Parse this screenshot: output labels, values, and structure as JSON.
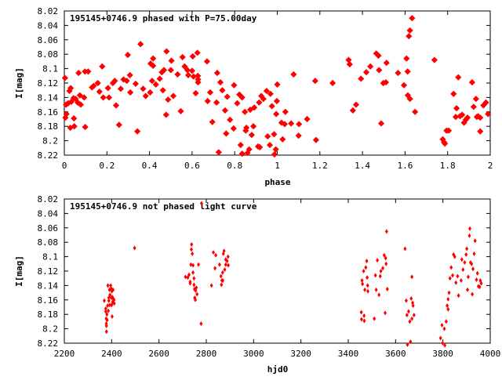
{
  "chart_data": [
    {
      "type": "scatter",
      "title": "195145+0746.9 phased with P=75.00day",
      "xlabel": "phase",
      "ylabel": "I[mag]",
      "xlim": [
        0,
        2
      ],
      "ylim": [
        8.22,
        8.02
      ],
      "y_inverted": true,
      "grid": false,
      "marker_color": "#ff0000",
      "x_ticks": [
        "0",
        "0.2",
        "0.4",
        "0.6",
        "0.8",
        "1",
        "1.2",
        "1.4",
        "1.6",
        "1.8",
        "2"
      ],
      "y_ticks": [
        "8.02",
        "8.04",
        "8.06",
        "8.08",
        "8.1",
        "8.12",
        "8.14",
        "8.16",
        "8.18",
        "8.2",
        "8.22"
      ],
      "points": [
        [
          0.003,
          8.113
        ],
        [
          0.005,
          8.168
        ],
        [
          0.008,
          8.15
        ],
        [
          0.01,
          8.163
        ],
        [
          0.018,
          8.148
        ],
        [
          0.024,
          8.131
        ],
        [
          0.028,
          8.182
        ],
        [
          0.03,
          8.127
        ],
        [
          0.033,
          8.146
        ],
        [
          0.043,
          8.141
        ],
        [
          0.045,
          8.169
        ],
        [
          0.047,
          8.18
        ],
        [
          0.053,
          8.142
        ],
        [
          0.063,
          8.147
        ],
        [
          0.067,
          8.106
        ],
        [
          0.073,
          8.137
        ],
        [
          0.077,
          8.15
        ],
        [
          0.093,
          8.14
        ],
        [
          0.097,
          8.104
        ],
        [
          0.098,
          8.181
        ],
        [
          0.112,
          8.104
        ],
        [
          0.13,
          8.126
        ],
        [
          0.138,
          8.124
        ],
        [
          0.157,
          8.12
        ],
        [
          0.165,
          8.132
        ],
        [
          0.178,
          8.097
        ],
        [
          0.183,
          8.14
        ],
        [
          0.205,
          8.127
        ],
        [
          0.21,
          8.14
        ],
        [
          0.228,
          8.12
        ],
        [
          0.237,
          8.117
        ],
        [
          0.243,
          8.151
        ],
        [
          0.257,
          8.178
        ],
        [
          0.265,
          8.128
        ],
        [
          0.278,
          8.115
        ],
        [
          0.293,
          8.117
        ],
        [
          0.298,
          8.081
        ],
        [
          0.308,
          8.109
        ],
        [
          0.31,
          8.133
        ],
        [
          0.335,
          8.121
        ],
        [
          0.343,
          8.187
        ],
        [
          0.358,
          8.066
        ],
        [
          0.37,
          8.128
        ],
        [
          0.382,
          8.138
        ],
        [
          0.403,
          8.133
        ],
        [
          0.405,
          8.093
        ],
        [
          0.412,
          8.117
        ],
        [
          0.417,
          8.086
        ],
        [
          0.417,
          8.096
        ],
        [
          0.43,
          8.122
        ],
        [
          0.448,
          8.114
        ],
        [
          0.458,
          8.105
        ],
        [
          0.463,
          8.13
        ],
        [
          0.468,
          8.102
        ],
        [
          0.478,
          8.164
        ],
        [
          0.48,
          8.076
        ],
        [
          0.487,
          8.143
        ],
        [
          0.5,
          8.102
        ],
        [
          0.503,
          8.089
        ],
        [
          0.512,
          8.138
        ],
        [
          0.532,
          8.108
        ],
        [
          0.547,
          8.159
        ],
        [
          0.555,
          8.084
        ],
        [
          0.565,
          8.097
        ],
        [
          0.578,
          8.102
        ],
        [
          0.582,
          8.109
        ],
        [
          0.6,
          8.103
        ],
        [
          0.603,
          8.083
        ],
        [
          0.607,
          8.111
        ],
        [
          0.617,
          8.134
        ],
        [
          0.625,
          8.078
        ],
        [
          0.627,
          8.11
        ],
        [
          0.628,
          8.119
        ],
        [
          0.628,
          8.115
        ],
        [
          0.67,
          8.09
        ],
        [
          0.673,
          8.145
        ],
        [
          0.685,
          8.133
        ],
        [
          0.695,
          8.174
        ],
        [
          0.715,
          8.147
        ],
        [
          0.718,
          8.106
        ],
        [
          0.725,
          8.216
        ],
        [
          0.733,
          8.119
        ],
        [
          0.742,
          8.13
        ],
        [
          0.755,
          8.158
        ],
        [
          0.76,
          8.19
        ],
        [
          0.765,
          8.139
        ],
        [
          0.778,
          8.171
        ],
        [
          0.795,
          8.183
        ],
        [
          0.797,
          8.123
        ],
        [
          0.812,
          8.148
        ],
        [
          0.822,
          8.136
        ],
        [
          0.828,
          8.206
        ],
        [
          0.835,
          8.14
        ],
        [
          0.835,
          8.218
        ],
        [
          0.848,
          8.16
        ],
        [
          0.852,
          8.186
        ],
        [
          0.855,
          8.182
        ],
        [
          0.86,
          8.217
        ],
        [
          0.868,
          8.212
        ],
        [
          0.873,
          8.157
        ],
        [
          0.88,
          8.192
        ],
        [
          0.888,
          8.18
        ],
        [
          0.892,
          8.154
        ],
        [
          0.91,
          8.208
        ],
        [
          0.915,
          8.147
        ],
        [
          0.918,
          8.209
        ],
        [
          0.925,
          8.138
        ],
        [
          0.935,
          8.142
        ],
        [
          0.95,
          8.131
        ],
        [
          0.955,
          8.194
        ],
        [
          0.965,
          8.206
        ],
        [
          0.968,
          8.135
        ],
        [
          0.975,
          8.152
        ],
        [
          0.985,
          8.191
        ],
        [
          0.987,
          8.219
        ],
        [
          0.993,
          8.212
        ],
        [
          0.995,
          8.163
        ],
        [
          0.998,
          8.145
        ],
        [
          1.0,
          8.122
        ],
        [
          1.02,
          8.175
        ],
        [
          1.025,
          8.198
        ],
        [
          1.035,
          8.177
        ],
        [
          1.038,
          8.16
        ],
        [
          1.065,
          8.176
        ],
        [
          1.077,
          8.108
        ],
        [
          1.1,
          8.193
        ],
        [
          1.102,
          8.177
        ],
        [
          1.14,
          8.17
        ],
        [
          1.178,
          8.117
        ],
        [
          1.182,
          8.199
        ],
        [
          1.26,
          8.12
        ],
        [
          1.335,
          8.088
        ],
        [
          1.34,
          8.094
        ],
        [
          1.355,
          8.158
        ],
        [
          1.37,
          8.15
        ],
        [
          1.393,
          8.114
        ],
        [
          1.418,
          8.105
        ],
        [
          1.437,
          8.097
        ],
        [
          1.465,
          8.079
        ],
        [
          1.475,
          8.082
        ],
        [
          1.478,
          8.102
        ],
        [
          1.488,
          8.176
        ],
        [
          1.498,
          8.12
        ],
        [
          1.51,
          8.119
        ],
        [
          1.513,
          8.092
        ],
        [
          1.567,
          8.106
        ],
        [
          1.595,
          8.123
        ],
        [
          1.607,
          8.086
        ],
        [
          1.612,
          8.104
        ],
        [
          1.613,
          8.137
        ],
        [
          1.618,
          8.055
        ],
        [
          1.623,
          8.047
        ],
        [
          1.623,
          8.142
        ],
        [
          1.633,
          8.03
        ],
        [
          1.647,
          8.16
        ],
        [
          1.738,
          8.088
        ],
        [
          1.777,
          8.198
        ],
        [
          1.783,
          8.202
        ],
        [
          1.787,
          8.204
        ],
        [
          1.795,
          8.186
        ],
        [
          1.805,
          8.186
        ],
        [
          1.828,
          8.135
        ],
        [
          1.838,
          8.167
        ],
        [
          1.842,
          8.155
        ],
        [
          1.85,
          8.112
        ],
        [
          1.858,
          8.166
        ],
        [
          1.868,
          8.164
        ],
        [
          1.877,
          8.175
        ],
        [
          1.885,
          8.171
        ],
        [
          1.893,
          8.168
        ],
        [
          1.915,
          8.119
        ],
        [
          1.922,
          8.153
        ],
        [
          1.933,
          8.142
        ],
        [
          1.937,
          8.167
        ],
        [
          1.943,
          8.166
        ],
        [
          1.953,
          8.168
        ],
        [
          1.953,
          8.187
        ],
        [
          1.968,
          8.151
        ],
        [
          1.98,
          8.147
        ],
        [
          1.99,
          8.163
        ]
      ]
    },
    {
      "type": "scatter",
      "title": "195145+0746.9 not phased light curve",
      "xlabel": "hjd0",
      "ylabel": "I[mag]",
      "xlim": [
        2200,
        4000
      ],
      "ylim": [
        8.22,
        8.02
      ],
      "y_inverted": true,
      "grid": false,
      "marker_color": "#ff0000",
      "x_ticks": [
        "2200",
        "2400",
        "2600",
        "2800",
        "3000",
        "3200",
        "3400",
        "3600",
        "3800",
        "4000"
      ],
      "y_ticks": [
        "8.02",
        "8.04",
        "8.06",
        "8.08",
        "8.1",
        "8.12",
        "8.14",
        "8.16",
        "8.18",
        "8.2",
        "8.22"
      ],
      "points": [
        [
          2369,
          8.161
        ],
        [
          2375,
          8.172
        ],
        [
          2375,
          8.176
        ],
        [
          2377,
          8.186
        ],
        [
          2377,
          8.193
        ],
        [
          2378,
          8.196
        ],
        [
          2378,
          8.204
        ],
        [
          2380,
          8.18
        ],
        [
          2381,
          8.188
        ],
        [
          2383,
          8.168
        ],
        [
          2384,
          8.14
        ],
        [
          2386,
          8.175
        ],
        [
          2388,
          8.157
        ],
        [
          2388,
          8.161
        ],
        [
          2391,
          8.146
        ],
        [
          2392,
          8.167
        ],
        [
          2393,
          8.153
        ],
        [
          2396,
          8.14
        ],
        [
          2398,
          8.144
        ],
        [
          2399,
          8.157
        ],
        [
          2400,
          8.167
        ],
        [
          2401,
          8.148
        ],
        [
          2402,
          8.183
        ],
        [
          2403,
          8.156
        ],
        [
          2404,
          8.163
        ],
        [
          2406,
          8.146
        ],
        [
          2408,
          8.159
        ],
        [
          2410,
          8.16
        ],
        [
          2411,
          8.165
        ],
        [
          2497,
          8.088
        ],
        [
          2712,
          8.128
        ],
        [
          2722,
          8.129
        ],
        [
          2727,
          8.125
        ],
        [
          2732,
          8.135
        ],
        [
          2732,
          8.137
        ],
        [
          2735,
          8.111
        ],
        [
          2737,
          8.09
        ],
        [
          2738,
          8.083
        ],
        [
          2741,
          8.096
        ],
        [
          2744,
          8.122
        ],
        [
          2744,
          8.112
        ],
        [
          2748,
          8.13
        ],
        [
          2748,
          8.139
        ],
        [
          2750,
          8.145
        ],
        [
          2751,
          8.157
        ],
        [
          2754,
          8.16
        ],
        [
          2755,
          8.147
        ],
        [
          2758,
          8.143
        ],
        [
          2761,
          8.152
        ],
        [
          2767,
          8.111
        ],
        [
          2778,
          8.193
        ],
        [
          2780,
          8.026
        ],
        [
          2822,
          8.14
        ],
        [
          2830,
          8.094
        ],
        [
          2837,
          8.116
        ],
        [
          2840,
          8.098
        ],
        [
          2856,
          8.111
        ],
        [
          2862,
          8.127
        ],
        [
          2864,
          8.139
        ],
        [
          2866,
          8.133
        ],
        [
          2869,
          8.122
        ],
        [
          2870,
          8.133
        ],
        [
          2872,
          8.096
        ],
        [
          2875,
          8.092
        ],
        [
          2878,
          8.118
        ],
        [
          2882,
          8.104
        ],
        [
          2882,
          8.111
        ],
        [
          2888,
          8.106
        ],
        [
          2892,
          8.1
        ],
        [
          2893,
          8.112
        ],
        [
          3455,
          8.177
        ],
        [
          3456,
          8.187
        ],
        [
          3458,
          8.133
        ],
        [
          3460,
          8.138
        ],
        [
          3465,
          8.12
        ],
        [
          3467,
          8.182
        ],
        [
          3468,
          8.189
        ],
        [
          3470,
          8.146
        ],
        [
          3474,
          8.115
        ],
        [
          3478,
          8.106
        ],
        [
          3480,
          8.129
        ],
        [
          3482,
          8.14
        ],
        [
          3483,
          8.148
        ],
        [
          3510,
          8.186
        ],
        [
          3515,
          8.126
        ],
        [
          3518,
          8.146
        ],
        [
          3523,
          8.105
        ],
        [
          3530,
          8.153
        ],
        [
          3535,
          8.127
        ],
        [
          3538,
          8.12
        ],
        [
          3546,
          8.116
        ],
        [
          3552,
          8.098
        ],
        [
          3556,
          8.178
        ],
        [
          3558,
          8.102
        ],
        [
          3560,
          8.11
        ],
        [
          3562,
          8.065
        ],
        [
          3565,
          8.145
        ],
        [
          3640,
          8.089
        ],
        [
          3645,
          8.161
        ],
        [
          3648,
          8.181
        ],
        [
          3650,
          8.222
        ],
        [
          3655,
          8.176
        ],
        [
          3660,
          8.19
        ],
        [
          3663,
          8.218
        ],
        [
          3666,
          8.158
        ],
        [
          3669,
          8.128
        ],
        [
          3669,
          8.186
        ],
        [
          3672,
          8.164
        ],
        [
          3674,
          8.168
        ],
        [
          3678,
          8.181
        ],
        [
          3790,
          8.213
        ],
        [
          3796,
          8.195
        ],
        [
          3799,
          8.22
        ],
        [
          3806,
          8.2
        ],
        [
          3808,
          8.223
        ],
        [
          3814,
          8.19
        ],
        [
          3818,
          8.168
        ],
        [
          3822,
          8.173
        ],
        [
          3822,
          8.159
        ],
        [
          3826,
          8.15
        ],
        [
          3830,
          8.13
        ],
        [
          3835,
          8.115
        ],
        [
          3841,
          8.126
        ],
        [
          3845,
          8.097
        ],
        [
          3850,
          8.1
        ],
        [
          3855,
          8.136
        ],
        [
          3862,
          8.127
        ],
        [
          3866,
          8.154
        ],
        [
          3877,
          8.133
        ],
        [
          3880,
          8.104
        ],
        [
          3885,
          8.118
        ],
        [
          3892,
          8.108
        ],
        [
          3898,
          8.097
        ],
        [
          3901,
          8.089
        ],
        [
          3904,
          8.146
        ],
        [
          3907,
          8.128
        ],
        [
          3912,
          8.071
        ],
        [
          3914,
          8.061
        ],
        [
          3917,
          8.108
        ],
        [
          3921,
          8.11
        ],
        [
          3924,
          8.152
        ],
        [
          3927,
          8.117
        ],
        [
          3932,
          8.096
        ],
        [
          3936,
          8.078
        ],
        [
          3942,
          8.132
        ],
        [
          3946,
          8.123
        ],
        [
          3950,
          8.141
        ],
        [
          3955,
          8.142
        ],
        [
          3958,
          8.133
        ],
        [
          3962,
          8.137
        ]
      ]
    }
  ]
}
